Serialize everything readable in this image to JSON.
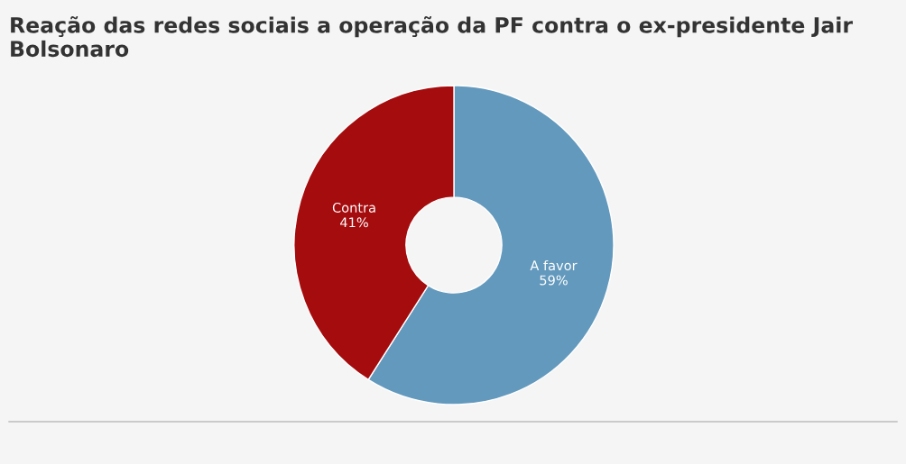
{
  "chart_data": {
    "type": "donut",
    "title": "Reação das redes sociais a operação da PF contra o ex-presidente Jair Bolsonaro",
    "categories": [
      "A favor",
      "Contra"
    ],
    "values": [
      59,
      41
    ],
    "value_labels": [
      "59%",
      "41%"
    ],
    "colors": [
      "#6399bd",
      "#a50c0e"
    ],
    "legend": false
  }
}
